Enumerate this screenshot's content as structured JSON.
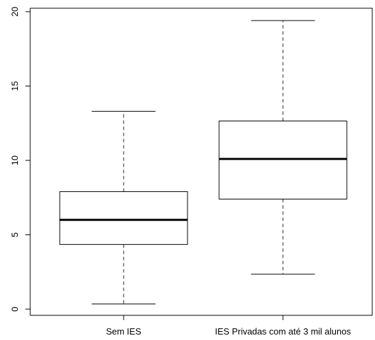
{
  "chart_data": {
    "type": "boxplot",
    "title": "",
    "xlabel": "",
    "ylabel": "",
    "ylim": [
      0,
      20
    ],
    "yticks": [
      0,
      5,
      10,
      15,
      20
    ],
    "categories": [
      "Sem IES",
      "IES Privadas com até 3 mil alunos"
    ],
    "boxes": [
      {
        "category": "Sem IES",
        "min": 0.35,
        "q1": 4.35,
        "median": 6.0,
        "q3": 7.9,
        "max": 13.3
      },
      {
        "category": "IES Privadas com até 3 mil alunos",
        "min": 2.35,
        "q1": 7.4,
        "median": 10.1,
        "q3": 12.65,
        "max": 19.4
      }
    ],
    "colors": {
      "box_fill": "#ffffff",
      "stroke": "#000000",
      "whisker": "#555555"
    }
  }
}
